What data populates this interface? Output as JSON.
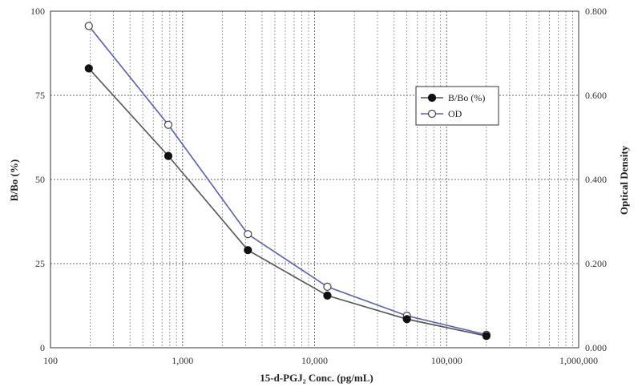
{
  "chart_data": {
    "type": "line",
    "xscale": "log",
    "xlim": [
      100,
      1000000
    ],
    "x_ticks": [
      100,
      1000,
      10000,
      100000,
      1000000
    ],
    "x_tick_labels": [
      "100",
      "1,000",
      "10,000",
      "100,000",
      "1,000,000"
    ],
    "xlabel": "15-d-PGJ₂ Conc. (pg/mL)",
    "ylim_left": [
      0,
      100
    ],
    "left_ticks": [
      0,
      25,
      50,
      75,
      100
    ],
    "left_tick_labels": [
      "0",
      "25",
      "50",
      "75",
      "100"
    ],
    "ylabel_left": "B/Bo (%)",
    "ylim_right": [
      0,
      0.8
    ],
    "right_ticks": [
      0,
      0.2,
      0.4,
      0.6,
      0.8
    ],
    "right_tick_labels": [
      "0.000",
      "0.200",
      "0.400",
      "0.600",
      "0.800"
    ],
    "ylabel_right": "Optical Density",
    "grid": true,
    "legend_position": "upper-right",
    "x": [
      195,
      780,
      3125,
      12500,
      50000,
      200000
    ],
    "series": [
      {
        "name": "B/Bo (%)",
        "axis": "left",
        "marker": "filled-circle",
        "color": "#555555",
        "values": [
          83,
          57,
          29,
          15.5,
          8.5,
          3.5
        ]
      },
      {
        "name": "OD",
        "axis": "right",
        "marker": "open-circle",
        "color": "#5a5fb5",
        "values": [
          0.765,
          0.53,
          0.27,
          0.145,
          0.076,
          0.031
        ]
      }
    ]
  }
}
